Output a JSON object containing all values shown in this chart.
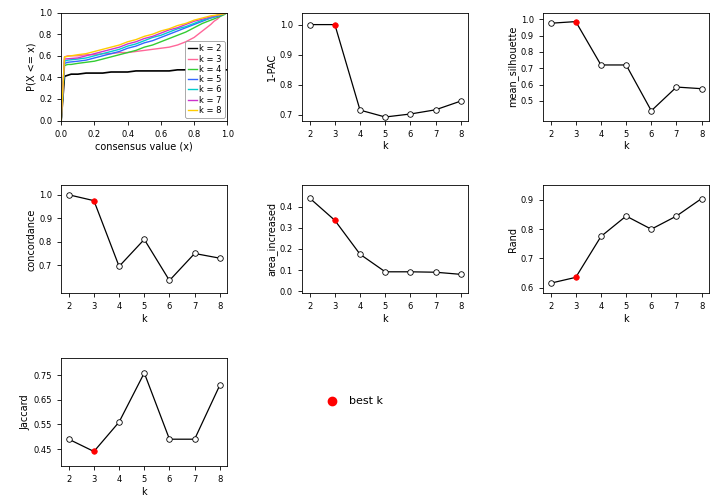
{
  "ecdf": {
    "k2": {
      "color": "#000000",
      "lw": 1.2
    },
    "k3": {
      "color": "#FF6699",
      "lw": 1.0
    },
    "k4": {
      "color": "#33CC33",
      "lw": 1.0
    },
    "k5": {
      "color": "#3366FF",
      "lw": 1.0
    },
    "k6": {
      "color": "#00CCCC",
      "lw": 1.0
    },
    "k7": {
      "color": "#CC33CC",
      "lw": 1.0
    },
    "k8": {
      "color": "#FFCC00",
      "lw": 1.0
    }
  },
  "ecdf_data": {
    "k2_x": [
      0.0,
      0.02,
      0.04,
      0.06,
      0.08,
      0.1,
      0.15,
      0.2,
      0.25,
      0.3,
      0.35,
      0.4,
      0.45,
      0.5,
      0.55,
      0.6,
      0.65,
      0.7,
      0.75,
      0.8,
      0.85,
      0.9,
      0.95,
      0.98,
      1.0
    ],
    "k2_y": [
      0.0,
      0.41,
      0.42,
      0.43,
      0.43,
      0.43,
      0.44,
      0.44,
      0.44,
      0.45,
      0.45,
      0.45,
      0.46,
      0.46,
      0.46,
      0.46,
      0.46,
      0.47,
      0.47,
      0.47,
      0.47,
      0.47,
      0.47,
      0.47,
      0.47
    ],
    "k3_x": [
      0.0,
      0.02,
      0.04,
      0.06,
      0.08,
      0.1,
      0.15,
      0.2,
      0.25,
      0.3,
      0.35,
      0.4,
      0.45,
      0.5,
      0.55,
      0.6,
      0.65,
      0.7,
      0.75,
      0.8,
      0.85,
      0.9,
      0.92,
      0.94,
      0.96,
      0.98,
      1.0
    ],
    "k3_y": [
      0.0,
      0.59,
      0.6,
      0.6,
      0.6,
      0.6,
      0.61,
      0.61,
      0.62,
      0.62,
      0.63,
      0.63,
      0.64,
      0.65,
      0.66,
      0.67,
      0.68,
      0.7,
      0.73,
      0.77,
      0.83,
      0.89,
      0.92,
      0.94,
      0.97,
      0.99,
      1.0
    ],
    "k4_x": [
      0.0,
      0.02,
      0.04,
      0.06,
      0.1,
      0.15,
      0.2,
      0.25,
      0.3,
      0.35,
      0.4,
      0.45,
      0.5,
      0.55,
      0.6,
      0.65,
      0.7,
      0.75,
      0.8,
      0.85,
      0.9,
      0.95,
      0.98,
      1.0
    ],
    "k4_y": [
      0.0,
      0.51,
      0.52,
      0.52,
      0.53,
      0.54,
      0.55,
      0.57,
      0.59,
      0.61,
      0.63,
      0.65,
      0.68,
      0.7,
      0.73,
      0.76,
      0.79,
      0.82,
      0.86,
      0.9,
      0.93,
      0.96,
      0.98,
      1.0
    ],
    "k5_x": [
      0.0,
      0.02,
      0.04,
      0.1,
      0.15,
      0.2,
      0.25,
      0.3,
      0.35,
      0.4,
      0.45,
      0.5,
      0.55,
      0.6,
      0.65,
      0.7,
      0.75,
      0.8,
      0.85,
      0.9,
      0.95,
      0.98,
      1.0
    ],
    "k5_y": [
      0.0,
      0.53,
      0.54,
      0.55,
      0.56,
      0.58,
      0.6,
      0.62,
      0.64,
      0.67,
      0.69,
      0.72,
      0.74,
      0.77,
      0.8,
      0.83,
      0.86,
      0.89,
      0.92,
      0.95,
      0.97,
      0.99,
      1.0
    ],
    "k6_x": [
      0.0,
      0.02,
      0.04,
      0.1,
      0.15,
      0.2,
      0.25,
      0.3,
      0.35,
      0.4,
      0.45,
      0.5,
      0.55,
      0.6,
      0.65,
      0.7,
      0.75,
      0.8,
      0.85,
      0.9,
      0.95,
      0.98,
      1.0
    ],
    "k6_y": [
      0.0,
      0.55,
      0.56,
      0.57,
      0.58,
      0.6,
      0.62,
      0.64,
      0.66,
      0.69,
      0.71,
      0.74,
      0.77,
      0.79,
      0.82,
      0.85,
      0.87,
      0.9,
      0.93,
      0.95,
      0.98,
      0.99,
      1.0
    ],
    "k7_x": [
      0.0,
      0.02,
      0.1,
      0.15,
      0.2,
      0.25,
      0.3,
      0.35,
      0.4,
      0.45,
      0.5,
      0.55,
      0.6,
      0.65,
      0.7,
      0.75,
      0.8,
      0.85,
      0.9,
      0.95,
      0.98,
      1.0
    ],
    "k7_y": [
      0.0,
      0.57,
      0.58,
      0.6,
      0.62,
      0.64,
      0.66,
      0.68,
      0.71,
      0.73,
      0.76,
      0.78,
      0.81,
      0.84,
      0.86,
      0.89,
      0.92,
      0.94,
      0.96,
      0.98,
      0.99,
      1.0
    ],
    "k8_x": [
      0.0,
      0.02,
      0.1,
      0.15,
      0.2,
      0.25,
      0.3,
      0.35,
      0.4,
      0.45,
      0.5,
      0.55,
      0.6,
      0.65,
      0.7,
      0.75,
      0.8,
      0.85,
      0.9,
      0.95,
      0.98,
      1.0
    ],
    "k8_y": [
      0.0,
      0.59,
      0.61,
      0.62,
      0.64,
      0.66,
      0.68,
      0.7,
      0.73,
      0.75,
      0.78,
      0.8,
      0.83,
      0.85,
      0.88,
      0.9,
      0.93,
      0.95,
      0.97,
      0.98,
      0.99,
      1.0
    ]
  },
  "ecdf_legend": [
    {
      "label": "k = 2",
      "color": "#000000"
    },
    {
      "label": "k = 3",
      "color": "#FF6699"
    },
    {
      "label": "k = 4",
      "color": "#33CC33"
    },
    {
      "label": "k = 5",
      "color": "#3366FF"
    },
    {
      "label": "k = 6",
      "color": "#00CCCC"
    },
    {
      "label": "k = 7",
      "color": "#CC33CC"
    },
    {
      "label": "k = 8",
      "color": "#FFCC00"
    }
  ],
  "pac": {
    "k": [
      2,
      3,
      4,
      5,
      6,
      7,
      8
    ],
    "y": [
      1.0,
      1.0,
      0.715,
      0.692,
      0.702,
      0.716,
      0.745
    ],
    "best_k": 3,
    "ylabel": "1-PAC",
    "ylim": [
      0.68,
      1.04
    ],
    "yticks": [
      0.7,
      0.8,
      0.9,
      1.0
    ]
  },
  "silhouette": {
    "k": [
      2,
      3,
      4,
      5,
      6,
      7,
      8
    ],
    "y": [
      0.975,
      0.985,
      0.72,
      0.72,
      0.44,
      0.585,
      0.575
    ],
    "best_k": 3,
    "ylabel": "mean_silhouette",
    "ylim": [
      0.38,
      1.04
    ],
    "yticks": [
      0.5,
      0.6,
      0.7,
      0.8,
      0.9,
      1.0
    ]
  },
  "concordance": {
    "k": [
      2,
      3,
      4,
      5,
      6,
      7,
      8
    ],
    "y": [
      1.0,
      0.975,
      0.695,
      0.81,
      0.635,
      0.75,
      0.73
    ],
    "best_k": 3,
    "ylabel": "concordance",
    "ylim": [
      0.58,
      1.04
    ],
    "yticks": [
      0.7,
      0.8,
      0.9,
      1.0
    ]
  },
  "area_increased": {
    "k": [
      2,
      3,
      4,
      5,
      6,
      7,
      8
    ],
    "y": [
      0.44,
      0.335,
      0.175,
      0.092,
      0.092,
      0.09,
      0.08
    ],
    "best_k": 3,
    "ylabel": "area_increased",
    "ylim": [
      -0.01,
      0.5
    ],
    "yticks": [
      0.0,
      0.1,
      0.2,
      0.3,
      0.4
    ]
  },
  "rand": {
    "k": [
      2,
      3,
      4,
      5,
      6,
      7,
      8
    ],
    "y": [
      0.615,
      0.635,
      0.775,
      0.845,
      0.8,
      0.845,
      0.905
    ],
    "best_k": 3,
    "ylabel": "Rand",
    "ylim": [
      0.58,
      0.95
    ],
    "yticks": [
      0.6,
      0.7,
      0.8,
      0.9
    ]
  },
  "jaccard": {
    "k": [
      2,
      3,
      4,
      5,
      6,
      7,
      8
    ],
    "y": [
      0.49,
      0.44,
      0.56,
      0.76,
      0.49,
      0.49,
      0.71
    ],
    "best_k": 3,
    "ylabel": "Jaccard",
    "ylim": [
      0.38,
      0.82
    ],
    "yticks": [
      0.45,
      0.55,
      0.65,
      0.75
    ]
  },
  "bg_color": "#FFFFFF",
  "line_color": "#000000",
  "open_circle_fc": "#FFFFFF",
  "open_circle_ec": "#000000",
  "best_dot_color": "#FF0000",
  "axis_fontsize": 7,
  "tick_fontsize": 6,
  "legend_fontsize": 6
}
